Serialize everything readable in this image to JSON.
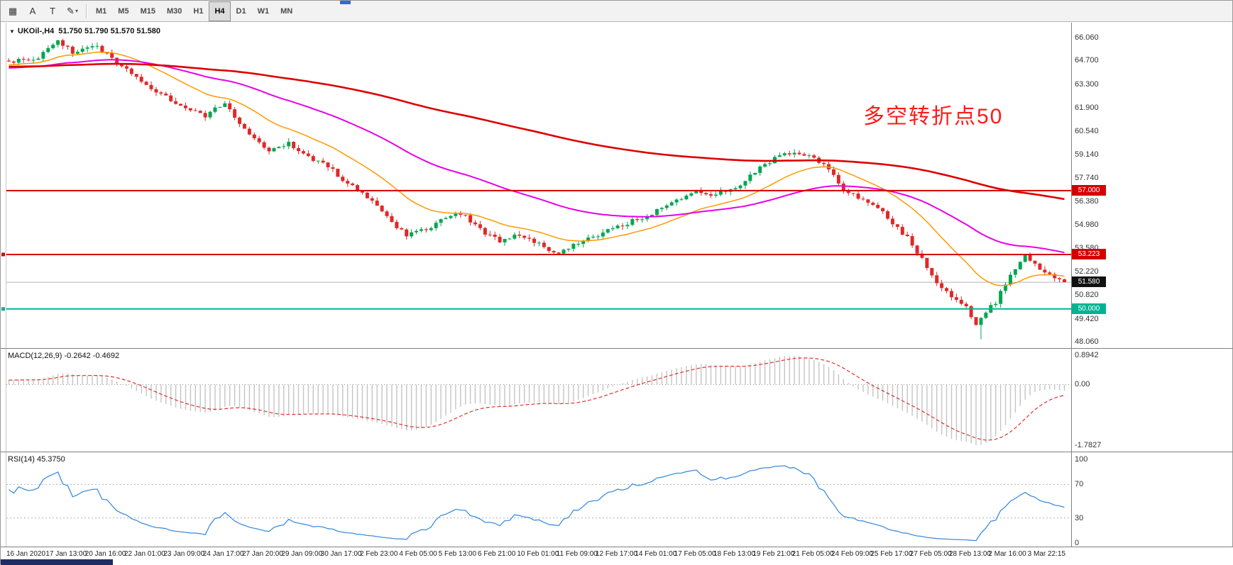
{
  "toolbar": {
    "tools": [
      {
        "id": "chart-shift",
        "glyph": "▦",
        "caret": ""
      },
      {
        "id": "text-annotation",
        "glyph": "A",
        "caret": ""
      },
      {
        "id": "text-label",
        "glyph": "T",
        "caret": ""
      },
      {
        "id": "draw-shapes",
        "glyph": "✎",
        "caret": "▾"
      }
    ],
    "timeframes": [
      {
        "label": "M1",
        "active": false
      },
      {
        "label": "M5",
        "active": false
      },
      {
        "label": "M15",
        "active": false
      },
      {
        "label": "M30",
        "active": false
      },
      {
        "label": "H1",
        "active": false
      },
      {
        "label": "H4",
        "active": true
      },
      {
        "label": "D1",
        "active": false
      },
      {
        "label": "W1",
        "active": false
      },
      {
        "label": "MN",
        "active": false
      }
    ]
  },
  "chart": {
    "symbol_tf": "UKOil-,H4",
    "ohlc": "51.750 51.790 51.570 51.580",
    "annotation": "多空转折点50",
    "price_axis": [
      "66.060",
      "64.700",
      "63.300",
      "61.900",
      "60.540",
      "59.140",
      "57.740",
      "56.380",
      "54.980",
      "53.580",
      "52.220",
      "50.820",
      "49.420",
      "48.060"
    ],
    "hlines": [
      {
        "price": 57.0,
        "label": "57.000",
        "color": "#d40000",
        "width": 2,
        "marker": false
      },
      {
        "price": 53.223,
        "label": "53.223",
        "color": "#d40000",
        "width": 2,
        "marker": true
      },
      {
        "price": 50.0,
        "label": "50.000",
        "color": "#00b493",
        "width": 2,
        "marker": true
      }
    ],
    "current_price": {
      "value": 51.58,
      "label": "51.580",
      "box_color": "#111111"
    },
    "colors": {
      "up": "#00a651",
      "down": "#e02828",
      "ma_fast": "#ff9900",
      "ma_mid": "#e800e8",
      "ma_slow": "#dd0000",
      "price_line": "#b4b4b4",
      "annotation": "#ff1a1a"
    }
  },
  "macd_panel": {
    "label": "MACD(12,26,9) -0.2642 -0.4692",
    "scale_top": "0.8942",
    "scale_zero": "0.00",
    "scale_bottom": "-1.7827",
    "hist_color": "#c4c4c4",
    "signal_color": "#e03030"
  },
  "rsi_panel": {
    "label": "RSI(14) 45.3750",
    "scale_values": [
      100,
      70,
      30,
      0
    ],
    "scale_labels": [
      "100",
      "70",
      "30",
      "0"
    ],
    "levels": [
      70,
      30
    ],
    "line_color": "#3e8ede"
  },
  "time_axis": [
    "16 Jan 2020",
    "17 Jan 13:00",
    "20 Jan 16:00",
    "22 Jan 01:00",
    "23 Jan 09:00",
    "24 Jan 17:00",
    "27 Jan 20:00",
    "29 Jan 09:00",
    "30 Jan 17:00",
    "2 Feb 23:00",
    "4 Feb 05:00",
    "5 Feb 13:00",
    "6 Feb 21:00",
    "10 Feb 01:00",
    "11 Feb 09:00",
    "12 Feb 17:00",
    "14 Feb 01:00",
    "17 Feb 05:00",
    "18 Feb 13:00",
    "19 Feb 21:00",
    "21 Feb 05:00",
    "24 Feb 09:00",
    "25 Feb 17:00",
    "27 Feb 05:00",
    "28 Feb 13:00",
    "2 Mar 16:00",
    "3 Mar 22:15"
  ],
  "chart_data": {
    "type": "candlestick",
    "symbol": "UKOil-",
    "timeframe": "H4",
    "title": "UKOil-,H4 51.750 51.790 51.570 51.580",
    "ohlc_current": {
      "open": 51.75,
      "high": 51.79,
      "low": 51.57,
      "close": 51.58
    },
    "price_axis_range": [
      48.06,
      66.06
    ],
    "visible_bars": 216,
    "history_bars": 160,
    "noise": 0.13,
    "wick": 0.22,
    "last_open": 51.75,
    "last_close": 51.58,
    "forced_high": 66.0,
    "forced_low": 48.2,
    "close_anchors": [
      [
        -160,
        64.0
      ],
      [
        -130,
        66.3
      ],
      [
        -100,
        65.2
      ],
      [
        -70,
        64.0
      ],
      [
        -40,
        63.6
      ],
      [
        -20,
        64.3
      ],
      [
        0,
        64.6
      ],
      [
        6,
        64.9
      ],
      [
        10,
        65.9
      ],
      [
        13,
        65.2
      ],
      [
        18,
        65.5
      ],
      [
        22,
        64.6
      ],
      [
        28,
        63.2
      ],
      [
        34,
        62.2
      ],
      [
        40,
        61.4
      ],
      [
        44,
        62.2
      ],
      [
        48,
        60.6
      ],
      [
        53,
        59.3
      ],
      [
        57,
        59.8
      ],
      [
        61,
        59.0
      ],
      [
        65,
        58.5
      ],
      [
        69,
        57.4
      ],
      [
        73,
        56.6
      ],
      [
        77,
        55.4
      ],
      [
        81,
        54.4
      ],
      [
        85,
        54.7
      ],
      [
        89,
        55.5
      ],
      [
        92,
        55.7
      ],
      [
        96,
        54.7
      ],
      [
        100,
        54.0
      ],
      [
        104,
        54.4
      ],
      [
        108,
        53.8
      ],
      [
        112,
        53.3
      ],
      [
        116,
        53.9
      ],
      [
        120,
        54.3
      ],
      [
        124,
        54.9
      ],
      [
        128,
        55.3
      ],
      [
        132,
        55.8
      ],
      [
        136,
        56.5
      ],
      [
        140,
        56.9
      ],
      [
        144,
        56.8
      ],
      [
        148,
        57.2
      ],
      [
        152,
        58.1
      ],
      [
        156,
        58.9
      ],
      [
        160,
        59.3
      ],
      [
        163,
        59.1
      ],
      [
        166,
        58.5
      ],
      [
        170,
        57.1
      ],
      [
        174,
        56.4
      ],
      [
        177,
        56.0
      ],
      [
        180,
        55.0
      ],
      [
        183,
        54.2
      ],
      [
        186,
        52.9
      ],
      [
        189,
        51.6
      ],
      [
        192,
        50.8
      ],
      [
        195,
        50.1
      ],
      [
        197,
        49.1
      ],
      [
        199,
        49.9
      ],
      [
        201,
        50.4
      ],
      [
        203,
        51.5
      ],
      [
        205,
        52.4
      ],
      [
        207,
        53.1
      ],
      [
        209,
        52.6
      ],
      [
        211,
        52.1
      ],
      [
        213,
        51.9
      ],
      [
        215,
        51.58
      ]
    ],
    "indicators": {
      "moving_averages": [
        {
          "type": "ema",
          "period": 20,
          "color": "#ff9900"
        },
        {
          "type": "ema",
          "period": 60,
          "color": "#e800e8"
        },
        {
          "type": "ema",
          "period": 200,
          "color": "#dd0000"
        }
      ],
      "macd": {
        "fast": 12,
        "slow": 26,
        "signal": 9,
        "current_values": [
          -0.2642,
          -0.4692
        ],
        "scale_max": 0.8942,
        "scale_min": -1.7827
      },
      "rsi": {
        "period": 14,
        "current_value": 45.375,
        "levels": [
          70,
          30
        ],
        "scale": [
          0,
          100
        ]
      }
    },
    "horizontal_lines": [
      57.0,
      53.223,
      50.0
    ],
    "annotation": {
      "text": "多空转折点50",
      "color": "#ff1a1a"
    },
    "time_labels_every_bars": 8
  },
  "misc": {
    "window_fragment_color": "#2a6fd4",
    "scrollbar_color": "#1f2b63"
  }
}
